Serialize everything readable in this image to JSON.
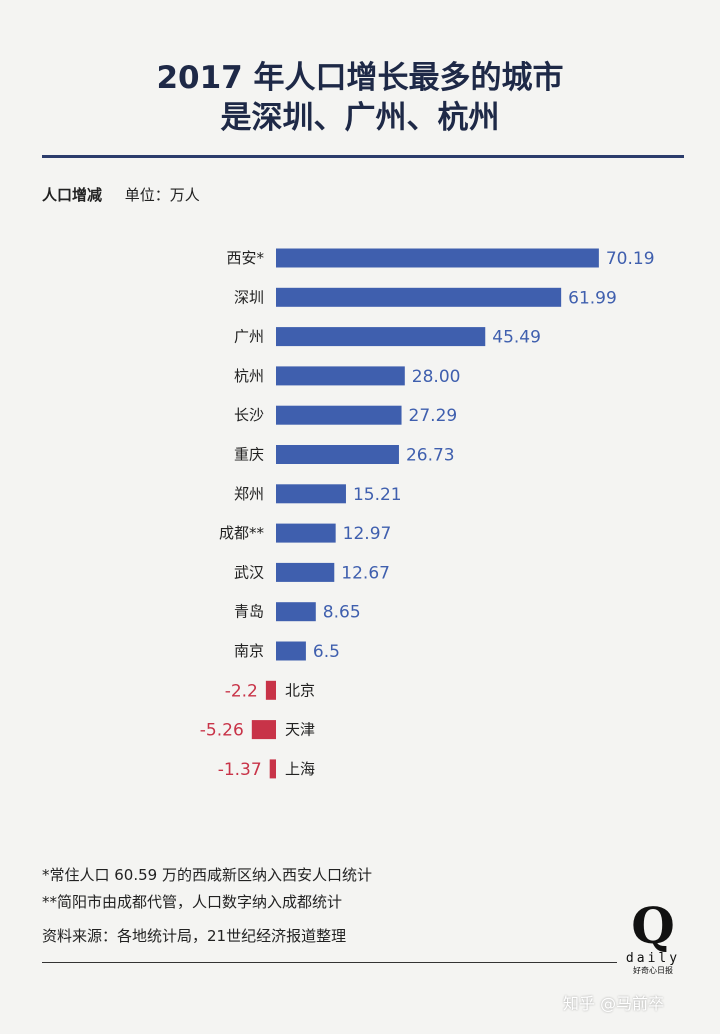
{
  "title": {
    "line1": "2017 年人口增长最多的城市",
    "line2": "是深圳、广州、杭州"
  },
  "subhead": {
    "measure": "人口增减",
    "unit": "单位：万人"
  },
  "colors": {
    "positive": "#3f5fae",
    "negative": "#c83348",
    "rule": "#2b3c6c"
  },
  "chart_data": {
    "type": "bar",
    "orientation": "horizontal",
    "categories": [
      "西安*",
      "深圳",
      "广州",
      "杭州",
      "长沙",
      "重庆",
      "郑州",
      "成都**",
      "武汉",
      "青岛",
      "南京",
      "北京",
      "天津",
      "上海"
    ],
    "values": [
      70.19,
      61.99,
      45.49,
      28.0,
      27.29,
      26.73,
      15.21,
      12.97,
      12.67,
      8.65,
      6.5,
      -2.2,
      -5.26,
      -1.37
    ],
    "value_labels": [
      "70.19",
      "61.99",
      "45.49",
      "28.00",
      "27.29",
      "26.73",
      "15.21",
      "12.97",
      "12.67",
      "8.65",
      "6.5",
      "-2.2",
      "-5.26",
      "-1.37"
    ],
    "xlim": [
      -6,
      75
    ],
    "grid": false,
    "legend": "none"
  },
  "notes": {
    "note1": "*常住人口 60.59 万的西咸新区纳入西安人口统计",
    "note2": "**简阳市由成都代管，人口数字纳入成都统计",
    "source": "资料来源：各地统计局，21世纪经济报道整理"
  },
  "logo": {
    "letter": "Q",
    "word": "daily",
    "tagline": "好奇心日报"
  },
  "watermark": "知乎 @马前卒"
}
